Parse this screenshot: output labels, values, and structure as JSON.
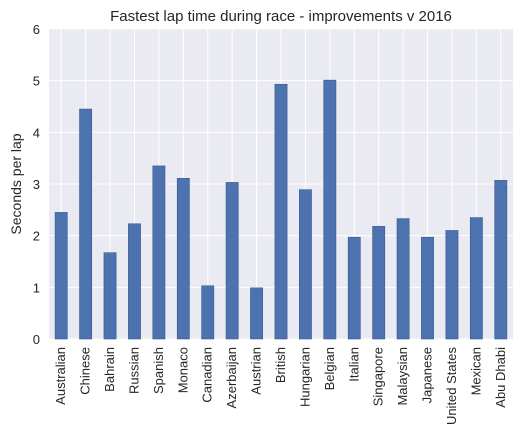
{
  "chart_data": {
    "type": "bar",
    "title": "Fastest lap time during race - improvements v 2016",
    "xlabel": "",
    "ylabel": "Seconds per lap",
    "ylim": [
      0,
      6
    ],
    "yticks": [
      "0",
      "1",
      "2",
      "3",
      "4",
      "5",
      "6"
    ],
    "grid": true,
    "legend": false,
    "bar_color": "#4c72b0",
    "background_color": "#eaeaf2",
    "categories": [
      "Australian",
      "Chinese",
      "Bahrain",
      "Russian",
      "Spanish",
      "Monaco",
      "Canadian",
      "Azerbaijan",
      "Austrian",
      "British",
      "Hungarian",
      "Belgian",
      "Italian",
      "Singapore",
      "Malaysian",
      "Japanese",
      "United States",
      "Mexican",
      "Abu Dhabi"
    ],
    "values": [
      2.45,
      4.45,
      1.67,
      2.23,
      3.35,
      3.11,
      1.03,
      3.03,
      0.99,
      4.93,
      2.89,
      5.01,
      1.97,
      2.18,
      2.33,
      1.97,
      2.1,
      2.35,
      3.07
    ]
  }
}
